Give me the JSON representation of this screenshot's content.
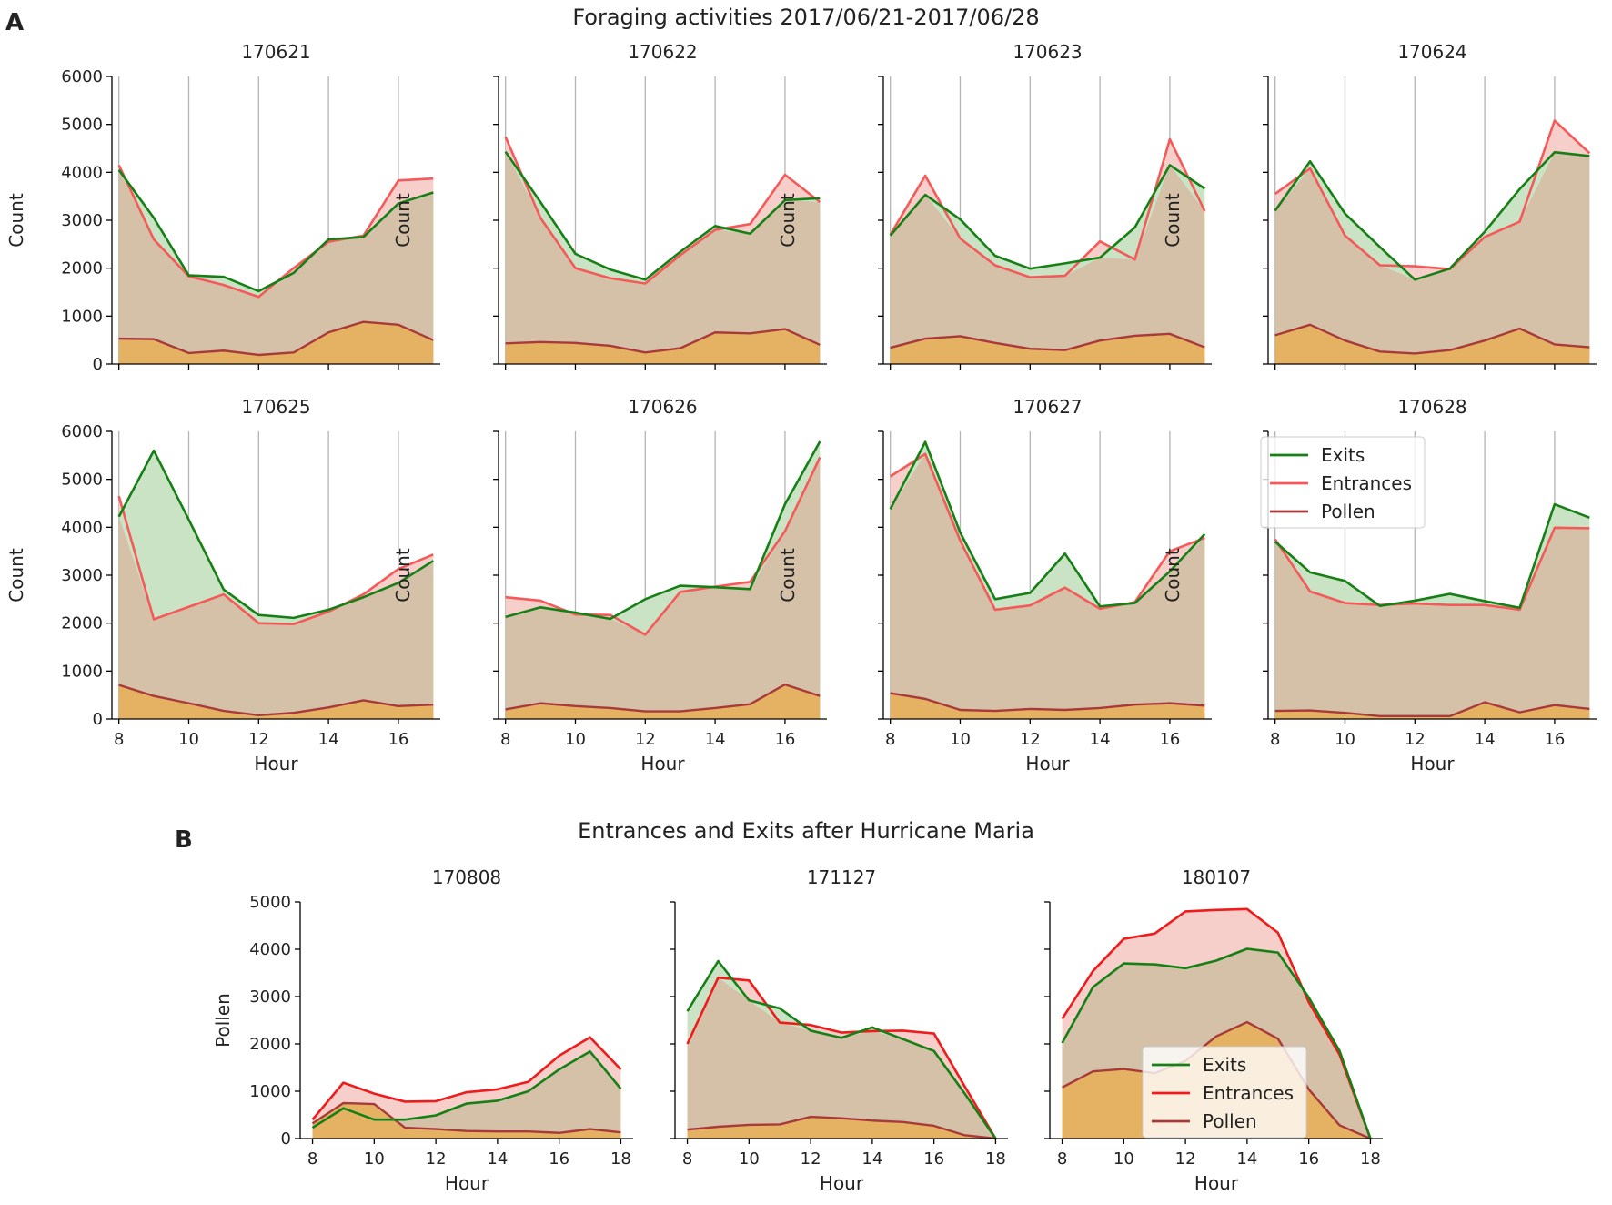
{
  "figure": {
    "panel_a_letter": "A",
    "panel_a_title": "Foraging activities 2017/06/21-2017/06/28",
    "panel_b_letter": "B",
    "panel_b_title": "Entrances and Exits after Hurricane Maria"
  },
  "colors": {
    "exits": "#168016",
    "entrances_a": "#f45a5a",
    "entrances_b": "#ee1c1c",
    "pollen": "#a83a3a",
    "exits_fill": "#c9e3c4",
    "entrances_fill": "#f6cfca",
    "overlap_fill": "#d5c0a8",
    "pollen_fill": "#e5b162",
    "grid": "#b4b4b4",
    "axis": "#000000"
  },
  "chart_data": [
    {
      "type": "area",
      "panel": "A",
      "title": "170621",
      "xlabel": "",
      "ylabel": "Count",
      "x": [
        8,
        9,
        10,
        11,
        12,
        13,
        14,
        15,
        16,
        17
      ],
      "xlim": [
        7.8,
        17.2
      ],
      "ylim": [
        0,
        6000
      ],
      "xticks": [
        8,
        10,
        12,
        14,
        16
      ],
      "yticks": [
        0,
        1000,
        2000,
        3000,
        4000,
        5000,
        6000
      ],
      "grid_x": true,
      "show_yticklabels": true,
      "series": [
        {
          "name": "Exits",
          "values": [
            4050,
            3050,
            1850,
            1820,
            1520,
            1900,
            2600,
            2650,
            3350,
            3580
          ]
        },
        {
          "name": "Entrances",
          "values": [
            4150,
            2600,
            1830,
            1650,
            1400,
            2000,
            2550,
            2680,
            3830,
            3870
          ]
        },
        {
          "name": "Pollen",
          "values": [
            530,
            520,
            230,
            280,
            190,
            240,
            660,
            880,
            820,
            500
          ]
        }
      ]
    },
    {
      "type": "area",
      "panel": "A",
      "title": "170622",
      "xlabel": "",
      "ylabel": "Count",
      "x": [
        8,
        9,
        10,
        11,
        12,
        13,
        14,
        15,
        16,
        17
      ],
      "xlim": [
        7.8,
        17.2
      ],
      "ylim": [
        0,
        6000
      ],
      "xticks": [
        8,
        10,
        12,
        14,
        16
      ],
      "yticks": [
        0,
        1000,
        2000,
        3000,
        4000,
        5000,
        6000
      ],
      "grid_x": true,
      "show_yticklabels": false,
      "series": [
        {
          "name": "Exits",
          "values": [
            4430,
            3380,
            2300,
            1970,
            1760,
            2340,
            2880,
            2720,
            3420,
            3460
          ]
        },
        {
          "name": "Entrances",
          "values": [
            4740,
            3050,
            2000,
            1790,
            1680,
            2270,
            2800,
            2920,
            3950,
            3380
          ]
        },
        {
          "name": "Pollen",
          "values": [
            430,
            460,
            440,
            380,
            240,
            330,
            660,
            640,
            730,
            400
          ]
        }
      ]
    },
    {
      "type": "area",
      "panel": "A",
      "title": "170623",
      "xlabel": "",
      "ylabel": "Count",
      "x": [
        8,
        9,
        10,
        11,
        12,
        13,
        14,
        15,
        16,
        17
      ],
      "xlim": [
        7.8,
        17.2
      ],
      "ylim": [
        0,
        6000
      ],
      "xticks": [
        8,
        10,
        12,
        14,
        16
      ],
      "yticks": [
        0,
        1000,
        2000,
        3000,
        4000,
        5000,
        6000
      ],
      "grid_x": true,
      "show_yticklabels": false,
      "series": [
        {
          "name": "Exits",
          "values": [
            2680,
            3530,
            3020,
            2260,
            1990,
            2100,
            2220,
            2850,
            4150,
            3660
          ]
        },
        {
          "name": "Entrances",
          "values": [
            2700,
            3930,
            2620,
            2060,
            1810,
            1840,
            2560,
            2180,
            4690,
            3190
          ]
        },
        {
          "name": "Pollen",
          "values": [
            340,
            530,
            580,
            440,
            320,
            290,
            490,
            590,
            630,
            350
          ]
        }
      ]
    },
    {
      "type": "area",
      "panel": "A",
      "title": "170624",
      "xlabel": "",
      "ylabel": "Count",
      "x": [
        8,
        9,
        10,
        11,
        12,
        13,
        14,
        15,
        16,
        17
      ],
      "xlim": [
        7.8,
        17.2
      ],
      "ylim": [
        0,
        6000
      ],
      "xticks": [
        8,
        10,
        12,
        14,
        16
      ],
      "yticks": [
        0,
        1000,
        2000,
        3000,
        4000,
        5000,
        6000
      ],
      "grid_x": true,
      "show_yticklabels": false,
      "series": [
        {
          "name": "Exits",
          "values": [
            3200,
            4230,
            3140,
            2440,
            1760,
            1990,
            2760,
            3650,
            4420,
            4340
          ]
        },
        {
          "name": "Entrances",
          "values": [
            3550,
            4080,
            2680,
            2060,
            2040,
            1980,
            2650,
            2970,
            5080,
            4400
          ]
        },
        {
          "name": "Pollen",
          "values": [
            600,
            820,
            490,
            260,
            220,
            290,
            490,
            740,
            410,
            350
          ]
        }
      ]
    },
    {
      "type": "area",
      "panel": "A",
      "title": "170625",
      "xlabel": "Hour",
      "ylabel": "Count",
      "x": [
        8,
        9,
        10,
        11,
        12,
        13,
        14,
        15,
        16,
        17
      ],
      "xlim": [
        7.8,
        17.2
      ],
      "ylim": [
        0,
        6000
      ],
      "xticks": [
        8,
        10,
        12,
        14,
        16
      ],
      "yticks": [
        0,
        1000,
        2000,
        3000,
        4000,
        5000,
        6000
      ],
      "grid_x": true,
      "show_yticklabels": true,
      "series": [
        {
          "name": "Exits",
          "values": [
            4220,
            5600,
            4160,
            2700,
            2170,
            2110,
            2280,
            2540,
            2840,
            3300
          ]
        },
        {
          "name": "Entrances",
          "values": [
            4650,
            2080,
            2340,
            2600,
            2000,
            1980,
            2240,
            2600,
            3130,
            3430
          ]
        },
        {
          "name": "Pollen",
          "values": [
            710,
            480,
            330,
            170,
            80,
            130,
            240,
            390,
            270,
            300
          ]
        }
      ]
    },
    {
      "type": "area",
      "panel": "A",
      "title": "170626",
      "xlabel": "Hour",
      "ylabel": "Count",
      "x": [
        8,
        9,
        10,
        11,
        12,
        13,
        14,
        15,
        16,
        17
      ],
      "xlim": [
        7.8,
        17.2
      ],
      "ylim": [
        0,
        6000
      ],
      "xticks": [
        8,
        10,
        12,
        14,
        16
      ],
      "yticks": [
        0,
        1000,
        2000,
        3000,
        4000,
        5000,
        6000
      ],
      "grid_x": true,
      "show_yticklabels": false,
      "series": [
        {
          "name": "Exits",
          "values": [
            2130,
            2330,
            2220,
            2090,
            2500,
            2780,
            2750,
            2710,
            4480,
            5790
          ]
        },
        {
          "name": "Entrances",
          "values": [
            2540,
            2470,
            2180,
            2170,
            1760,
            2650,
            2760,
            2860,
            3920,
            5460
          ]
        },
        {
          "name": "Pollen",
          "values": [
            200,
            330,
            270,
            230,
            160,
            160,
            230,
            310,
            720,
            480
          ]
        }
      ]
    },
    {
      "type": "area",
      "panel": "A",
      "title": "170627",
      "xlabel": "Hour",
      "ylabel": "Count",
      "x": [
        8,
        9,
        10,
        11,
        12,
        13,
        14,
        15,
        16,
        17
      ],
      "xlim": [
        7.8,
        17.2
      ],
      "ylim": [
        0,
        6000
      ],
      "xticks": [
        8,
        10,
        12,
        14,
        16
      ],
      "yticks": [
        0,
        1000,
        2000,
        3000,
        4000,
        5000,
        6000
      ],
      "grid_x": true,
      "show_yticklabels": false,
      "series": [
        {
          "name": "Exits",
          "values": [
            4380,
            5780,
            3890,
            2500,
            2630,
            3450,
            2350,
            2420,
            3080,
            3860
          ]
        },
        {
          "name": "Entrances",
          "values": [
            5060,
            5530,
            3720,
            2280,
            2370,
            2740,
            2300,
            2440,
            3500,
            3780
          ]
        },
        {
          "name": "Pollen",
          "values": [
            540,
            420,
            190,
            170,
            210,
            190,
            230,
            300,
            330,
            280
          ]
        }
      ]
    },
    {
      "type": "area",
      "panel": "A",
      "title": "170628",
      "xlabel": "Hour",
      "ylabel": "Count",
      "x": [
        8,
        9,
        10,
        11,
        12,
        13,
        14,
        15,
        16,
        17
      ],
      "xlim": [
        7.8,
        17.2
      ],
      "ylim": [
        0,
        6000
      ],
      "xticks": [
        8,
        10,
        12,
        14,
        16
      ],
      "yticks": [
        0,
        1000,
        2000,
        3000,
        4000,
        5000,
        6000
      ],
      "grid_x": true,
      "show_yticklabels": false,
      "legend": {
        "placement": "upper-left",
        "entries": [
          "Exits",
          "Entrances",
          "Pollen"
        ]
      },
      "series": [
        {
          "name": "Exits",
          "values": [
            3700,
            3060,
            2880,
            2360,
            2470,
            2610,
            2460,
            2320,
            4480,
            4200
          ]
        },
        {
          "name": "Entrances",
          "values": [
            3750,
            2660,
            2420,
            2380,
            2410,
            2380,
            2380,
            2280,
            3990,
            3980
          ]
        },
        {
          "name": "Pollen",
          "values": [
            170,
            180,
            130,
            60,
            60,
            60,
            350,
            140,
            290,
            210
          ]
        }
      ]
    },
    {
      "type": "area",
      "panel": "B",
      "title": "170808",
      "xlabel": "Hour",
      "ylabel": "Pollen",
      "x": [
        8,
        9,
        10,
        11,
        12,
        13,
        14,
        15,
        16,
        17,
        18
      ],
      "xlim": [
        7.6,
        18.4
      ],
      "ylim": [
        0,
        5000
      ],
      "xticks": [
        8,
        10,
        12,
        14,
        16,
        18
      ],
      "yticks": [
        0,
        1000,
        2000,
        3000,
        4000,
        5000
      ],
      "grid_x": false,
      "show_yticklabels": true,
      "series": [
        {
          "name": "Exits",
          "values": [
            230,
            640,
            400,
            400,
            490,
            740,
            800,
            1000,
            1460,
            1840,
            1050
          ]
        },
        {
          "name": "Entrances",
          "values": [
            400,
            1180,
            950,
            780,
            790,
            980,
            1040,
            1200,
            1750,
            2140,
            1460
          ]
        },
        {
          "name": "Pollen",
          "values": [
            320,
            750,
            730,
            230,
            200,
            160,
            150,
            150,
            120,
            200,
            130
          ]
        }
      ]
    },
    {
      "type": "area",
      "panel": "B",
      "title": "171127",
      "xlabel": "Hour",
      "ylabel": "",
      "x": [
        8,
        9,
        10,
        11,
        12,
        13,
        14,
        15,
        16,
        17,
        18
      ],
      "xlim": [
        7.6,
        18.4
      ],
      "ylim": [
        0,
        5000
      ],
      "xticks": [
        8,
        10,
        12,
        14,
        16,
        18
      ],
      "yticks": [
        0,
        1000,
        2000,
        3000,
        4000,
        5000
      ],
      "grid_x": false,
      "show_yticklabels": false,
      "series": [
        {
          "name": "Exits",
          "values": [
            2690,
            3750,
            2920,
            2750,
            2280,
            2130,
            2350,
            2100,
            1850,
            950,
            0
          ]
        },
        {
          "name": "Entrances",
          "values": [
            2000,
            3400,
            3340,
            2450,
            2400,
            2240,
            2270,
            2280,
            2220,
            1100,
            0
          ]
        },
        {
          "name": "Pollen",
          "values": [
            190,
            250,
            290,
            300,
            460,
            430,
            380,
            350,
            270,
            70,
            0
          ]
        }
      ]
    },
    {
      "type": "area",
      "panel": "B",
      "title": "180107",
      "xlabel": "Hour",
      "ylabel": "",
      "x": [
        8,
        9,
        10,
        11,
        12,
        13,
        14,
        15,
        16,
        17,
        18
      ],
      "xlim": [
        7.6,
        18.4
      ],
      "ylim": [
        0,
        5000
      ],
      "xticks": [
        8,
        10,
        12,
        14,
        16,
        18
      ],
      "yticks": [
        0,
        1000,
        2000,
        3000,
        4000,
        5000
      ],
      "grid_x": false,
      "show_yticklabels": false,
      "legend": {
        "placement": "lower-center",
        "entries": [
          "Exits",
          "Entrances",
          "Pollen"
        ]
      },
      "series": [
        {
          "name": "Exits",
          "values": [
            2020,
            3200,
            3700,
            3680,
            3600,
            3760,
            4010,
            3930,
            2980,
            1850,
            0
          ]
        },
        {
          "name": "Entrances",
          "values": [
            2530,
            3540,
            4220,
            4330,
            4800,
            4830,
            4850,
            4350,
            2880,
            1770,
            0
          ]
        },
        {
          "name": "Pollen",
          "values": [
            1080,
            1420,
            1470,
            1380,
            1640,
            2160,
            2460,
            2110,
            1040,
            280,
            0
          ]
        }
      ]
    }
  ]
}
